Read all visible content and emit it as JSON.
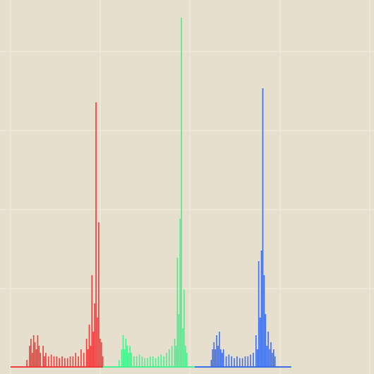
{
  "chart_data": {
    "type": "bar",
    "title": "",
    "xlabel": "",
    "ylabel": "",
    "xlim": [
      0,
      255
    ],
    "ylim": [
      0,
      1
    ],
    "grid": true,
    "legend": "none",
    "series": [
      {
        "name": "",
        "color": "#ee3b3b",
        "bins": [
          [
            12,
            0.02
          ],
          [
            14,
            0.06
          ],
          [
            15,
            0.08
          ],
          [
            16,
            0.04
          ],
          [
            17,
            0.09
          ],
          [
            18,
            0.07
          ],
          [
            19,
            0.05
          ],
          [
            20,
            0.09
          ],
          [
            21,
            0.06
          ],
          [
            22,
            0.04
          ],
          [
            24,
            0.06
          ],
          [
            25,
            0.03
          ],
          [
            26,
            0.04
          ],
          [
            28,
            0.03
          ],
          [
            30,
            0.035
          ],
          [
            32,
            0.03
          ],
          [
            34,
            0.03
          ],
          [
            36,
            0.025
          ],
          [
            38,
            0.03
          ],
          [
            40,
            0.025
          ],
          [
            42,
            0.025
          ],
          [
            44,
            0.03
          ],
          [
            46,
            0.03
          ],
          [
            48,
            0.04
          ],
          [
            50,
            0.03
          ],
          [
            52,
            0.05
          ],
          [
            54,
            0.04
          ],
          [
            56,
            0.08
          ],
          [
            57,
            0.05
          ],
          [
            58,
            0.12
          ],
          [
            59,
            0.06
          ],
          [
            60,
            0.26
          ],
          [
            61,
            0.1
          ],
          [
            62,
            0.18
          ],
          [
            63,
            0.75
          ],
          [
            64,
            0.14
          ],
          [
            65,
            0.41
          ],
          [
            66,
            0.08
          ],
          [
            67,
            0.07
          ],
          [
            68,
            0.03
          ]
        ]
      },
      {
        "name": "",
        "color": "#46f08c",
        "bins": [
          [
            80,
            0.02
          ],
          [
            82,
            0.05
          ],
          [
            83,
            0.09
          ],
          [
            84,
            0.05
          ],
          [
            85,
            0.08
          ],
          [
            86,
            0.06
          ],
          [
            87,
            0.04
          ],
          [
            88,
            0.06
          ],
          [
            89,
            0.04
          ],
          [
            91,
            0.03
          ],
          [
            93,
            0.03
          ],
          [
            95,
            0.035
          ],
          [
            97,
            0.03
          ],
          [
            99,
            0.025
          ],
          [
            101,
            0.025
          ],
          [
            103,
            0.03
          ],
          [
            105,
            0.03
          ],
          [
            107,
            0.025
          ],
          [
            109,
            0.03
          ],
          [
            111,
            0.035
          ],
          [
            113,
            0.03
          ],
          [
            115,
            0.04
          ],
          [
            117,
            0.05
          ],
          [
            119,
            0.06
          ],
          [
            121,
            0.08
          ],
          [
            122,
            0.06
          ],
          [
            123,
            0.31
          ],
          [
            124,
            0.15
          ],
          [
            125,
            0.42
          ],
          [
            126,
            0.99
          ],
          [
            127,
            0.11
          ],
          [
            128,
            0.22
          ],
          [
            129,
            0.06
          ],
          [
            130,
            0.04
          ]
        ]
      },
      {
        "name": "",
        "color": "#3e6de8",
        "bins": [
          [
            148,
            0.02
          ],
          [
            149,
            0.05
          ],
          [
            150,
            0.07
          ],
          [
            151,
            0.05
          ],
          [
            152,
            0.09
          ],
          [
            153,
            0.06
          ],
          [
            154,
            0.1
          ],
          [
            155,
            0.05
          ],
          [
            156,
            0.04
          ],
          [
            157,
            0.05
          ],
          [
            159,
            0.03
          ],
          [
            161,
            0.035
          ],
          [
            163,
            0.03
          ],
          [
            165,
            0.025
          ],
          [
            167,
            0.03
          ],
          [
            169,
            0.025
          ],
          [
            171,
            0.025
          ],
          [
            173,
            0.03
          ],
          [
            175,
            0.03
          ],
          [
            177,
            0.035
          ],
          [
            179,
            0.04
          ],
          [
            181,
            0.09
          ],
          [
            182,
            0.05
          ],
          [
            183,
            0.3
          ],
          [
            184,
            0.14
          ],
          [
            185,
            0.33
          ],
          [
            186,
            0.79
          ],
          [
            187,
            0.26
          ],
          [
            188,
            0.15
          ],
          [
            189,
            0.06
          ],
          [
            190,
            0.1
          ],
          [
            191,
            0.05
          ],
          [
            192,
            0.07
          ],
          [
            193,
            0.04
          ],
          [
            194,
            0.05
          ],
          [
            195,
            0.03
          ]
        ]
      }
    ]
  }
}
